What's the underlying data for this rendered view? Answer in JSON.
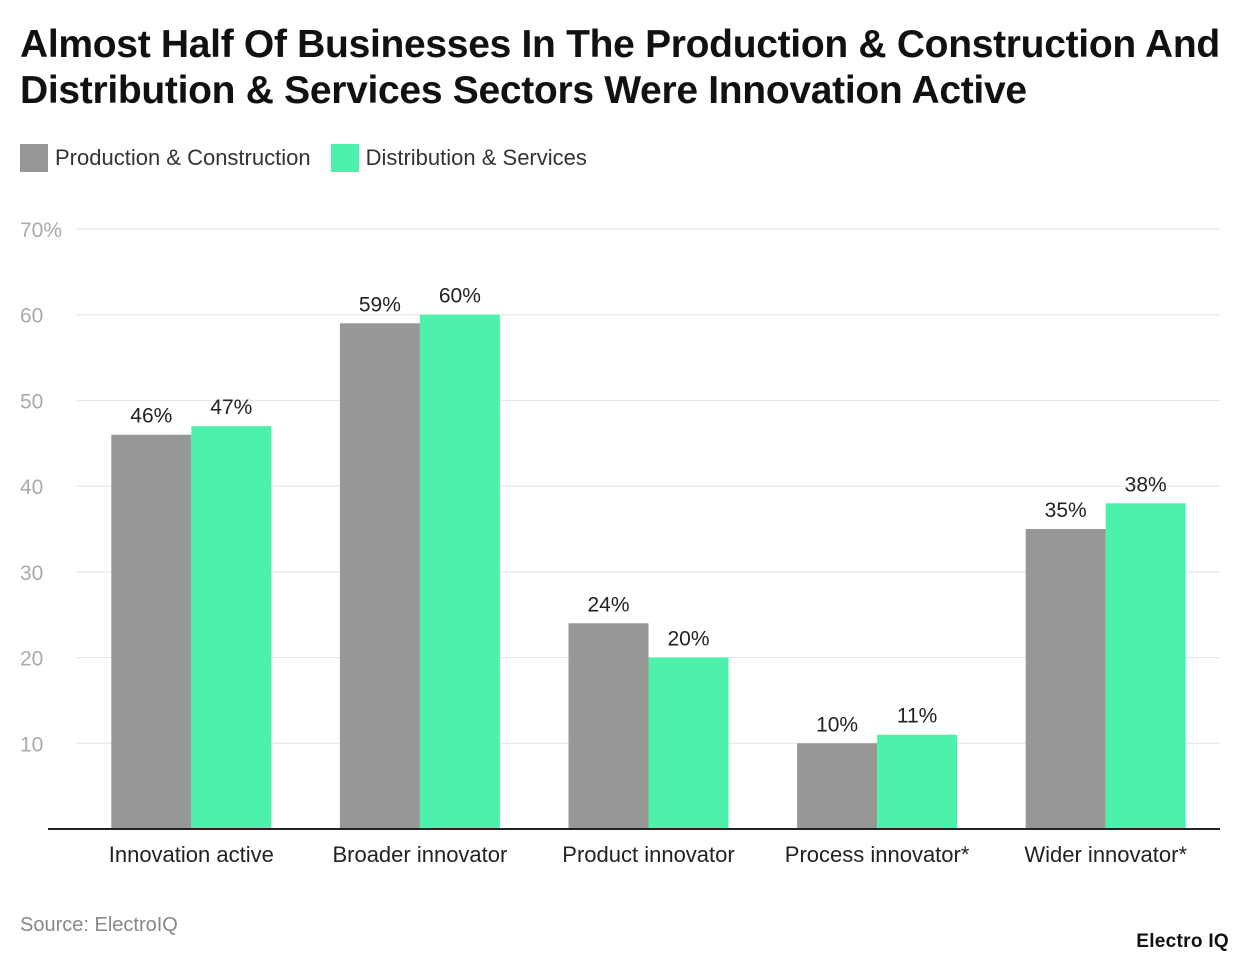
{
  "title": "Almost Half Of Businesses In The Production & Construction And Distribution & Services Sectors Were Innovation Active",
  "source": "Source: ElectroIQ",
  "brand": "Electro IQ",
  "colors": {
    "production": "#969796",
    "distribution": "#4cf2ab",
    "grid": "#e2e2e2",
    "axis": "#222222"
  },
  "chart_data": {
    "type": "bar",
    "categories": [
      "Innovation active",
      "Broader innovator",
      "Product innovator",
      "Process innovator*",
      "Wider innovator*"
    ],
    "series": [
      {
        "name": "Production & Construction",
        "values": [
          46,
          59,
          24,
          10,
          35
        ],
        "labels": [
          "46%",
          "59%",
          "24%",
          "10%",
          "35%"
        ]
      },
      {
        "name": "Distribution & Services",
        "values": [
          47,
          60,
          20,
          11,
          38
        ],
        "labels": [
          "47%",
          "60%",
          "20%",
          "11%",
          "38%"
        ]
      }
    ],
    "yticks": [
      10,
      20,
      30,
      40,
      50,
      60,
      70
    ],
    "ytick_labels": [
      "10",
      "20",
      "30",
      "40",
      "50",
      "60",
      "70%"
    ],
    "ylim": [
      0,
      70
    ],
    "grid": true,
    "legend": "top-left"
  }
}
